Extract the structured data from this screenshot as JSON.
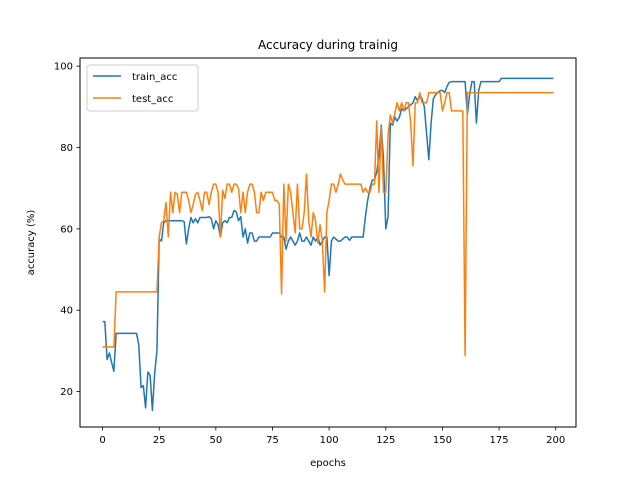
{
  "chart_data": {
    "type": "line",
    "title": "Accuracy during trainig",
    "xlabel": "epochs",
    "ylabel": "accuracy (%)",
    "xlim": [
      -9.95,
      208.95
    ],
    "ylim": [
      11.3,
      102.0
    ],
    "x_ticks": [
      0,
      25,
      50,
      75,
      100,
      125,
      150,
      175,
      200
    ],
    "y_ticks": [
      20,
      40,
      60,
      80,
      100
    ],
    "grid": false,
    "legend_position": "top-left",
    "series": [
      {
        "name": "train_acc",
        "color": "#1f77b4",
        "points": [
          [
            0,
            37.2
          ],
          [
            1,
            37.2
          ],
          [
            2,
            27.9
          ],
          [
            3,
            29.5
          ],
          [
            4,
            27.2
          ],
          [
            5,
            25.0
          ],
          [
            6,
            34.3
          ],
          [
            7,
            34.3
          ],
          [
            10,
            34.3
          ],
          [
            14,
            34.3
          ],
          [
            15,
            34.3
          ],
          [
            16,
            31.5
          ],
          [
            17,
            21.0
          ],
          [
            18,
            21.5
          ],
          [
            19,
            16.0
          ],
          [
            20,
            24.8
          ],
          [
            21,
            24.0
          ],
          [
            22,
            15.4
          ],
          [
            23,
            24.5
          ],
          [
            24,
            30.0
          ],
          [
            25,
            57.5
          ],
          [
            26,
            57.0
          ],
          [
            27,
            61.5
          ],
          [
            28,
            62.0
          ],
          [
            29,
            62.0
          ],
          [
            35,
            62.0
          ],
          [
            36,
            61.8
          ],
          [
            37,
            56.3
          ],
          [
            38,
            60.0
          ],
          [
            39,
            62.8
          ],
          [
            40,
            61.5
          ],
          [
            41,
            62.5
          ],
          [
            42,
            61.5
          ],
          [
            43,
            62.8
          ],
          [
            44,
            62.8
          ],
          [
            46,
            62.8
          ],
          [
            47,
            63.0
          ],
          [
            48,
            62.5
          ],
          [
            49,
            60.0
          ],
          [
            50,
            62.0
          ],
          [
            51,
            61.0
          ],
          [
            52,
            58.0
          ],
          [
            53,
            61.5
          ],
          [
            54,
            62.0
          ],
          [
            55,
            61.5
          ],
          [
            56,
            62.8
          ],
          [
            57,
            62.8
          ],
          [
            58,
            64.5
          ],
          [
            59,
            64.2
          ],
          [
            60,
            62.0
          ],
          [
            61,
            63.0
          ],
          [
            62,
            58.0
          ],
          [
            63,
            60.0
          ],
          [
            64,
            56.5
          ],
          [
            65,
            59.0
          ],
          [
            66,
            59.0
          ],
          [
            67,
            57.0
          ],
          [
            68,
            57.0
          ],
          [
            69,
            58.0
          ],
          [
            74,
            58.0
          ],
          [
            75,
            59.0
          ],
          [
            78,
            59.0
          ],
          [
            79,
            58.0
          ],
          [
            80,
            58.0
          ],
          [
            81,
            55.0
          ],
          [
            82,
            57.0
          ],
          [
            83,
            58.0
          ],
          [
            84,
            57.0
          ],
          [
            85,
            56.0
          ],
          [
            86,
            57.0
          ],
          [
            87,
            59.0
          ],
          [
            88,
            57.0
          ],
          [
            89,
            57.0
          ],
          [
            90,
            58.0
          ],
          [
            92,
            56.0
          ],
          [
            93,
            58.0
          ],
          [
            94,
            57.0
          ],
          [
            95,
            58.0
          ],
          [
            96,
            56.0
          ],
          [
            97,
            57.0
          ],
          [
            98,
            58.0
          ],
          [
            99,
            58.0
          ],
          [
            100,
            48.5
          ],
          [
            101,
            57.0
          ],
          [
            102,
            58.0
          ],
          [
            103,
            57.5
          ],
          [
            104,
            57.0
          ],
          [
            105,
            57.0
          ],
          [
            106,
            57.5
          ],
          [
            107,
            58.0
          ],
          [
            108,
            58.0
          ],
          [
            109,
            57.2
          ],
          [
            110,
            58.0
          ],
          [
            114,
            58.0
          ],
          [
            115,
            58.0
          ],
          [
            116,
            63.0
          ],
          [
            117,
            67.0
          ],
          [
            118,
            70.0
          ],
          [
            119,
            72.0
          ],
          [
            120,
            72.0
          ],
          [
            121,
            74.0
          ],
          [
            122,
            78.0
          ],
          [
            123,
            85.5
          ],
          [
            124,
            77.0
          ],
          [
            125,
            60.0
          ],
          [
            126,
            63.0
          ],
          [
            127,
            86.0
          ],
          [
            128,
            85.5
          ],
          [
            129,
            87.5
          ],
          [
            130,
            86.5
          ],
          [
            131,
            87.5
          ],
          [
            132,
            89.5
          ],
          [
            133,
            89.0
          ],
          [
            134,
            89.5
          ],
          [
            135,
            90.0
          ],
          [
            136,
            90.5
          ],
          [
            137,
            91.0
          ],
          [
            138,
            92.5
          ],
          [
            139,
            91.5
          ],
          [
            140,
            92.5
          ],
          [
            141,
            92.0
          ],
          [
            142,
            90.0
          ],
          [
            143,
            83.5
          ],
          [
            144,
            77.0
          ],
          [
            145,
            86.0
          ],
          [
            146,
            92.0
          ],
          [
            147,
            93.0
          ],
          [
            148,
            93.5
          ],
          [
            149,
            94.0
          ],
          [
            150,
            94.0
          ],
          [
            151,
            93.5
          ],
          [
            152,
            95.0
          ],
          [
            153,
            96.0
          ],
          [
            154,
            96.2
          ],
          [
            155,
            96.2
          ],
          [
            160,
            96.2
          ],
          [
            161,
            88.0
          ],
          [
            162,
            93.0
          ],
          [
            163,
            96.2
          ],
          [
            164,
            96.2
          ],
          [
            165,
            86.0
          ],
          [
            166,
            94.0
          ],
          [
            167,
            96.2
          ],
          [
            175,
            96.2
          ],
          [
            176,
            97.0
          ],
          [
            199,
            97.0
          ]
        ]
      },
      {
        "name": "test_acc",
        "color": "#ff7f0e",
        "points": [
          [
            0,
            31.0
          ],
          [
            4,
            31.0
          ],
          [
            5,
            31.0
          ],
          [
            6,
            44.5
          ],
          [
            7,
            44.5
          ],
          [
            24,
            44.5
          ],
          [
            25,
            58.0
          ],
          [
            26,
            61.5
          ],
          [
            27,
            62.0
          ],
          [
            28,
            66.5
          ],
          [
            29,
            58.0
          ],
          [
            30,
            69.0
          ],
          [
            31,
            64.0
          ],
          [
            32,
            69.0
          ],
          [
            33,
            68.5
          ],
          [
            34,
            64.0
          ],
          [
            35,
            69.0
          ],
          [
            36,
            69.0
          ],
          [
            37,
            69.0
          ],
          [
            38,
            67.0
          ],
          [
            39,
            64.0
          ],
          [
            40,
            66.0
          ],
          [
            41,
            68.5
          ],
          [
            42,
            69.0
          ],
          [
            43,
            67.0
          ],
          [
            44,
            64.5
          ],
          [
            45,
            69.0
          ],
          [
            46,
            69.0
          ],
          [
            47,
            66.0
          ],
          [
            48,
            69.0
          ],
          [
            49,
            71.0
          ],
          [
            50,
            71.0
          ],
          [
            51,
            69.0
          ],
          [
            52,
            58.0
          ],
          [
            53,
            69.5
          ],
          [
            54,
            67.5
          ],
          [
            55,
            71.0
          ],
          [
            56,
            71.0
          ],
          [
            57,
            69.0
          ],
          [
            58,
            71.0
          ],
          [
            59,
            71.0
          ],
          [
            60,
            70.0
          ],
          [
            61,
            64.0
          ],
          [
            62,
            69.0
          ],
          [
            63,
            64.0
          ],
          [
            64,
            69.0
          ],
          [
            65,
            71.0
          ],
          [
            66,
            71.0
          ],
          [
            67,
            69.0
          ],
          [
            68,
            64.0
          ],
          [
            69,
            64.0
          ],
          [
            70,
            69.0
          ],
          [
            71,
            67.0
          ],
          [
            72,
            69.0
          ],
          [
            73,
            69.0
          ],
          [
            74,
            69.0
          ],
          [
            75,
            69.0
          ],
          [
            76,
            67.0
          ],
          [
            77,
            67.0
          ],
          [
            78,
            66.0
          ],
          [
            79,
            44.0
          ],
          [
            80,
            71.0
          ],
          [
            81,
            57.0
          ],
          [
            82,
            71.0
          ],
          [
            83,
            69.0
          ],
          [
            84,
            64.0
          ],
          [
            85,
            59.0
          ],
          [
            86,
            71.0
          ],
          [
            87,
            60.0
          ],
          [
            88,
            60.0
          ],
          [
            89,
            64.0
          ],
          [
            90,
            73.5
          ],
          [
            91,
            62.0
          ],
          [
            92,
            58.0
          ],
          [
            93,
            64.0
          ],
          [
            94,
            62.0
          ],
          [
            95,
            56.5
          ],
          [
            96,
            61.0
          ],
          [
            97,
            57.0
          ],
          [
            98,
            44.5
          ],
          [
            99,
            64.0
          ],
          [
            100,
            67.0
          ],
          [
            101,
            71.0
          ],
          [
            102,
            71.0
          ],
          [
            103,
            69.0
          ],
          [
            104,
            71.0
          ],
          [
            105,
            73.5
          ],
          [
            106,
            72.0
          ],
          [
            107,
            71.0
          ],
          [
            108,
            71.0
          ],
          [
            114,
            71.0
          ],
          [
            115,
            69.0
          ],
          [
            116,
            70.0
          ],
          [
            117,
            69.0
          ],
          [
            118,
            69.0
          ],
          [
            119,
            71.0
          ],
          [
            120,
            71.0
          ],
          [
            121,
            86.5
          ],
          [
            122,
            69.0
          ],
          [
            123,
            85.0
          ],
          [
            124,
            69.0
          ],
          [
            125,
            69.0
          ],
          [
            126,
            83.0
          ],
          [
            127,
            88.0
          ],
          [
            128,
            86.0
          ],
          [
            129,
            88.5
          ],
          [
            130,
            91.0
          ],
          [
            131,
            89.0
          ],
          [
            132,
            91.0
          ],
          [
            133,
            89.0
          ],
          [
            134,
            91.0
          ],
          [
            135,
            91.0
          ],
          [
            136,
            86.0
          ],
          [
            137,
            75.5
          ],
          [
            138,
            91.0
          ],
          [
            139,
            91.0
          ],
          [
            140,
            93.5
          ],
          [
            141,
            91.0
          ],
          [
            142,
            91.0
          ],
          [
            143,
            91.0
          ],
          [
            144,
            93.5
          ],
          [
            145,
            93.5
          ],
          [
            149,
            93.5
          ],
          [
            150,
            89.0
          ],
          [
            151,
            91.0
          ],
          [
            152,
            93.5
          ],
          [
            153,
            93.5
          ],
          [
            154,
            89.0
          ],
          [
            155,
            89.0
          ],
          [
            159,
            89.0
          ],
          [
            160,
            28.8
          ],
          [
            161,
            93.5
          ],
          [
            199,
            93.5
          ]
        ]
      }
    ]
  }
}
